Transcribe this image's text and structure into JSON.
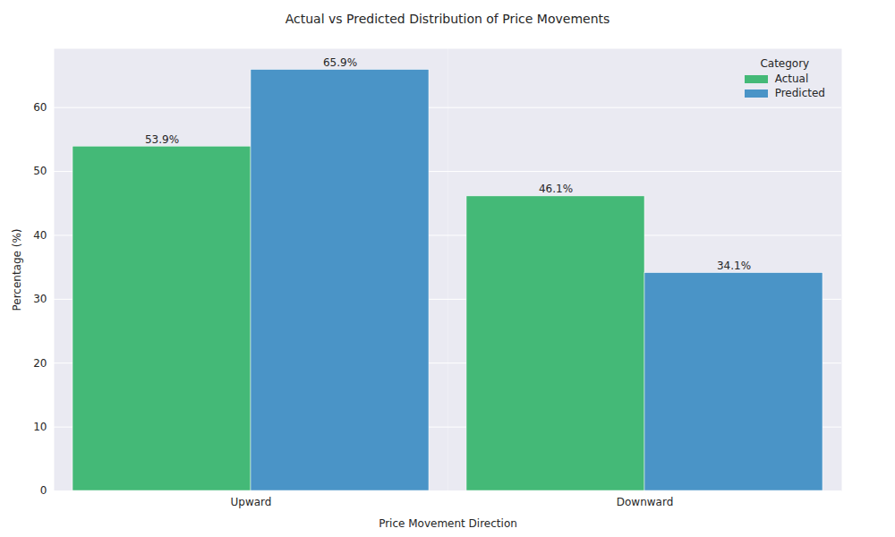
{
  "chart_data": {
    "type": "bar",
    "title": "Actual vs Predicted Distribution of Price Movements",
    "x_label": "Price Movement Direction",
    "y_label": "Percentage (%)",
    "categories": [
      "Upward",
      "Downward"
    ],
    "series": [
      {
        "name": "Actual",
        "color": "#44b977",
        "values": [
          53.9,
          46.1
        ],
        "value_labels": [
          "53.9%",
          "46.1%"
        ]
      },
      {
        "name": "Predicted",
        "color": "#4a94c7",
        "values": [
          65.9,
          34.1
        ],
        "value_labels": [
          "65.9%",
          "34.1%"
        ]
      }
    ],
    "legend_title": "Category",
    "ylim": [
      0,
      69.2
    ],
    "yticks": [
      0,
      10,
      20,
      30,
      40,
      50,
      60
    ],
    "grid": true,
    "legend": "upper right",
    "data_labels": true
  }
}
